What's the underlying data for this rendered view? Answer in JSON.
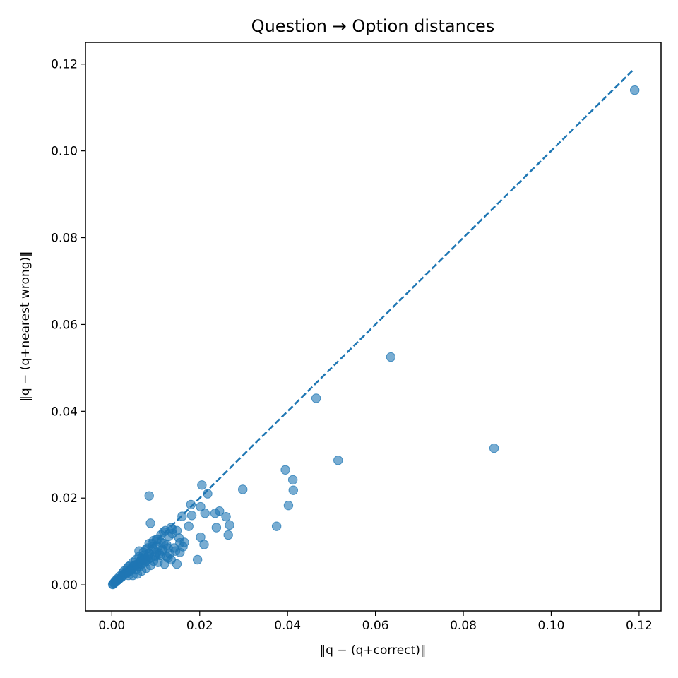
{
  "chart_data": {
    "type": "scatter",
    "title": "Question → Option distances",
    "xlabel": "‖q − (q+correct)‖",
    "ylabel": "‖q − (q+nearest wrong)‖",
    "xlim": [
      -0.006,
      0.125
    ],
    "ylim": [
      -0.006,
      0.125
    ],
    "xticks": [
      0.0,
      0.02,
      0.04,
      0.06,
      0.08,
      0.1,
      0.12
    ],
    "yticks": [
      0.0,
      0.02,
      0.04,
      0.06,
      0.08,
      0.1,
      0.12
    ],
    "xtick_labels": [
      "0.00",
      "0.02",
      "0.04",
      "0.06",
      "0.08",
      "0.10",
      "0.12"
    ],
    "ytick_labels": [
      "0.00",
      "0.02",
      "0.04",
      "0.06",
      "0.08",
      "0.10",
      "0.12"
    ],
    "grid": false,
    "legend": "none",
    "colors": {
      "points": "#1f77b4",
      "reference_line": "#1f77b4",
      "axes": "#000000"
    },
    "reference_line": {
      "style": "dashed",
      "x": [
        0.0,
        0.1185
      ],
      "y": [
        0.0,
        0.1185
      ]
    },
    "series": [
      {
        "x": [
          0.119,
          0.0635,
          0.0465,
          0.087,
          0.0515,
          0.0395,
          0.0412,
          0.0413,
          0.0298,
          0.0402,
          0.0375,
          0.0085,
          0.0205,
          0.0218,
          0.0202,
          0.018,
          0.0245,
          0.0235,
          0.026,
          0.0268,
          0.0212,
          0.0182,
          0.016,
          0.0238,
          0.0265,
          0.0202,
          0.0175,
          0.021,
          0.0155,
          0.0165,
          0.0153,
          0.0195,
          0.0088,
          0.0135,
          0.0148,
          0.0138,
          0.0118,
          0.013,
          0.0155,
          0.0128,
          0.0105,
          0.0112,
          0.0095,
          0.0125,
          0.0142,
          0.0115,
          0.0085,
          0.0092,
          0.0078,
          0.0102,
          0.0132,
          0.011,
          0.0098,
          0.0085,
          0.0072,
          0.0068,
          0.0082,
          0.0095,
          0.0105,
          0.012,
          0.0065,
          0.0075,
          0.0088,
          0.0058,
          0.0062,
          0.0052,
          0.0078,
          0.0048,
          0.0055,
          0.0045,
          0.0068,
          0.0042,
          0.0038,
          0.0035,
          0.0058,
          0.0032,
          0.0028,
          0.0025,
          0.0048,
          0.0022,
          0.0018,
          0.0015,
          0.0012,
          0.001,
          0.0008,
          0.0005,
          0.0003,
          0.0002,
          0.0028,
          0.0035,
          0.0042,
          0.0055,
          0.0062,
          0.0072,
          0.0082,
          0.0092,
          0.0102,
          0.0112,
          0.0122,
          0.0138,
          0.0045,
          0.0052,
          0.0065,
          0.0075,
          0.0085,
          0.0095,
          0.0105,
          0.0118,
          0.0128,
          0.0145,
          0.0162,
          0.0038,
          0.0025,
          0.0018,
          0.0012,
          0.0008,
          0.0032,
          0.0042,
          0.0058,
          0.0068,
          0.0078,
          0.0088,
          0.0098,
          0.0108,
          0.0115,
          0.0125,
          0.0135,
          0.0148,
          0.0062,
          0.0048,
          0.0072,
          0.0082,
          0.0022,
          0.0015,
          0.0005,
          0.0038
        ],
        "y": [
          0.114,
          0.0525,
          0.043,
          0.0315,
          0.0287,
          0.0265,
          0.0242,
          0.0218,
          0.022,
          0.0183,
          0.0135,
          0.0205,
          0.023,
          0.021,
          0.018,
          0.0185,
          0.017,
          0.0165,
          0.0157,
          0.0138,
          0.0165,
          0.016,
          0.0158,
          0.0132,
          0.0115,
          0.011,
          0.0135,
          0.0093,
          0.0097,
          0.0098,
          0.0108,
          0.0058,
          0.0142,
          0.0132,
          0.0125,
          0.0118,
          0.0122,
          0.0112,
          0.0075,
          0.0062,
          0.0105,
          0.0098,
          0.0102,
          0.0092,
          0.0085,
          0.0082,
          0.0095,
          0.0088,
          0.0082,
          0.0075,
          0.0072,
          0.0068,
          0.0065,
          0.0072,
          0.0068,
          0.0062,
          0.0058,
          0.0055,
          0.0052,
          0.0048,
          0.0055,
          0.0052,
          0.0045,
          0.0048,
          0.0042,
          0.0045,
          0.0038,
          0.0042,
          0.0035,
          0.0038,
          0.0032,
          0.0035,
          0.0032,
          0.0028,
          0.0025,
          0.0028,
          0.0025,
          0.0022,
          0.0022,
          0.0018,
          0.0015,
          0.0012,
          0.001,
          0.0008,
          0.0006,
          0.0004,
          0.0002,
          0.0001,
          0.0032,
          0.0038,
          0.0045,
          0.0058,
          0.0065,
          0.0075,
          0.0085,
          0.0095,
          0.0105,
          0.0115,
          0.0125,
          0.0128,
          0.0035,
          0.0045,
          0.0055,
          0.0062,
          0.0072,
          0.0082,
          0.0088,
          0.0095,
          0.0085,
          0.0078,
          0.0088,
          0.0042,
          0.0028,
          0.002,
          0.0014,
          0.0009,
          0.0025,
          0.0032,
          0.0042,
          0.0048,
          0.0055,
          0.0062,
          0.0068,
          0.0072,
          0.0078,
          0.0065,
          0.0058,
          0.0048,
          0.0078,
          0.0052,
          0.0058,
          0.0065,
          0.0018,
          0.0012,
          0.0005,
          0.0022
        ]
      }
    ]
  }
}
